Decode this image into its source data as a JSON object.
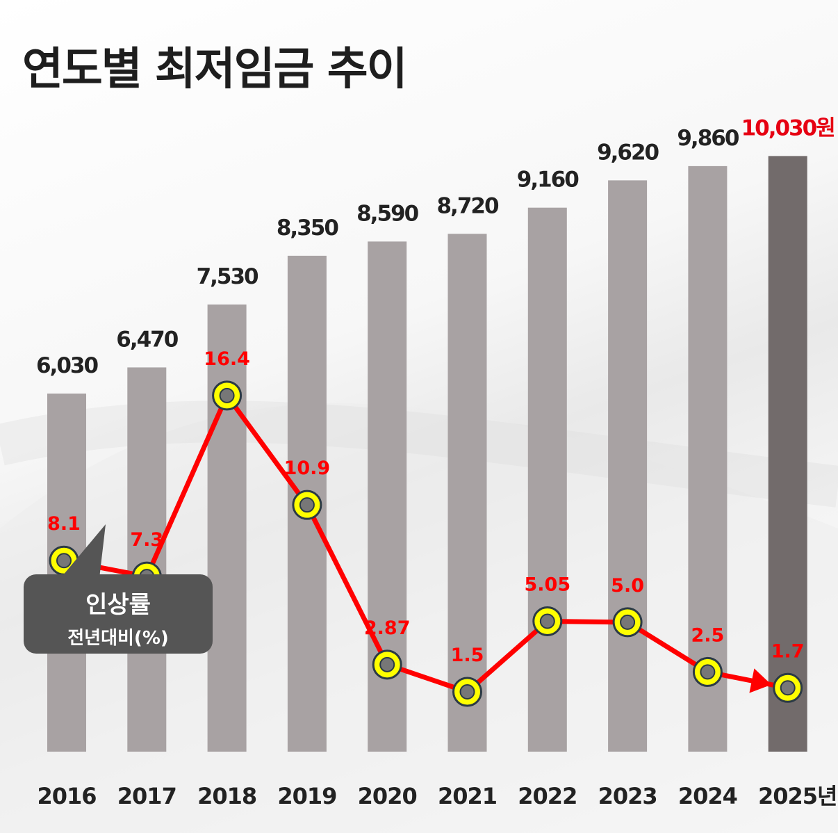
{
  "chart_data": {
    "type": "bar",
    "title": "연도별 최저임금 추이",
    "categories": [
      "2016",
      "2017",
      "2018",
      "2019",
      "2020",
      "2021",
      "2022",
      "2023",
      "2024",
      "2025년"
    ],
    "series": [
      {
        "values": [
          6030,
          6470,
          7530,
          8350,
          8590,
          8720,
          9160,
          9620,
          9860,
          10030
        ]
      },
      {
        "name": "인상률",
        "values": [
          8.1,
          7.3,
          16.4,
          10.9,
          2.87,
          1.5,
          5.05,
          5.0,
          2.5,
          1.7
        ]
      }
    ],
    "bar_labels": [
      "6,030",
      "6,470",
      "7,530",
      "8,350",
      "8,590",
      "8,720",
      "9,160",
      "9,620",
      "9,860",
      "10,030원"
    ],
    "rate_labels": [
      "8.1",
      "7.3",
      "16.4",
      "10.9",
      "2.87",
      "1.5",
      "5.05",
      "5.0",
      "2.5",
      "1.7"
    ],
    "legend": {
      "title": "인상률",
      "subtitle": "전년대비(%)"
    },
    "colors": {
      "bar": "#a8a2a3",
      "bar_highlight": "#726b6b",
      "line": "#ff0000",
      "marker_fill": "#ffff00",
      "marker_center": "#777777",
      "highlight_label": "#e60012",
      "label": "#222222"
    }
  }
}
